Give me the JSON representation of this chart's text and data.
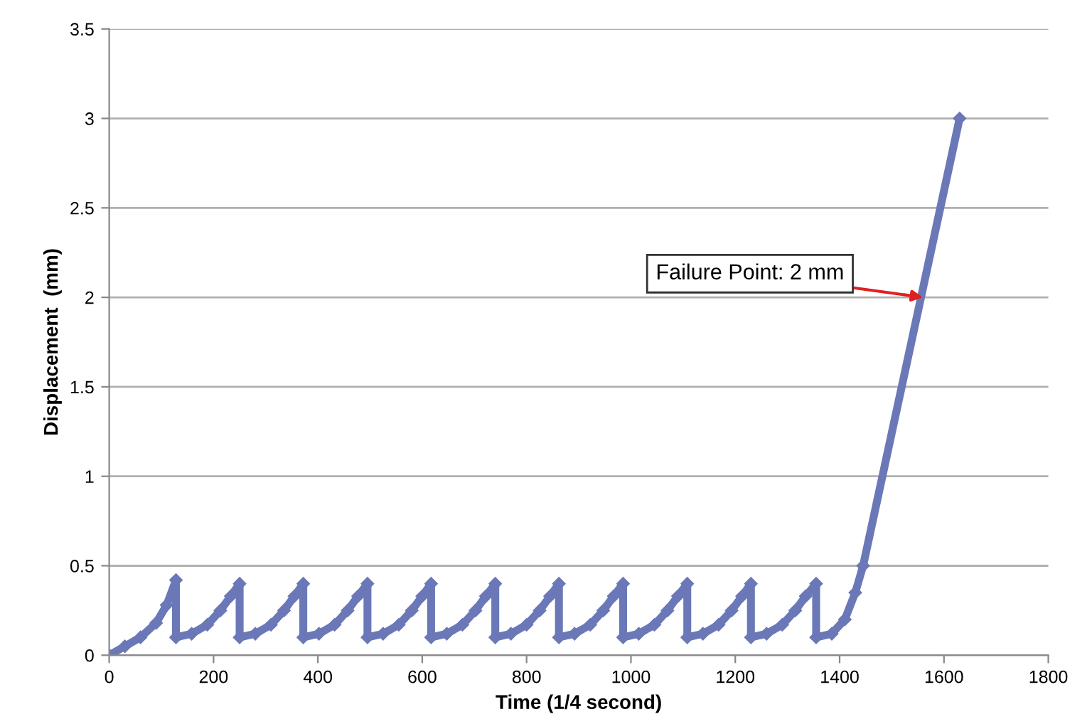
{
  "chart_data": {
    "type": "line",
    "xlabel": "Time (1/4 second)",
    "ylabel": "Displacement  (mm)",
    "series": [
      {
        "color": "#6b78b8",
        "x": [
          0,
          30,
          60,
          90,
          110,
          128,
          128,
          158,
          188,
          213,
          233,
          250,
          250,
          280,
          310,
          335,
          355,
          372,
          372,
          402,
          432,
          457,
          477,
          495,
          495,
          525,
          555,
          580,
          600,
          617,
          617,
          647,
          677,
          702,
          722,
          740,
          740,
          770,
          800,
          825,
          845,
          862,
          862,
          892,
          922,
          947,
          967,
          985,
          985,
          1015,
          1045,
          1070,
          1090,
          1108,
          1108,
          1138,
          1168,
          1193,
          1213,
          1230,
          1230,
          1260,
          1290,
          1315,
          1335,
          1355,
          1355,
          1385,
          1410,
          1430,
          1445,
          1630
        ],
        "values": [
          0,
          0.05,
          0.1,
          0.18,
          0.28,
          0.42,
          0.1,
          0.12,
          0.17,
          0.25,
          0.33,
          0.4,
          0.1,
          0.12,
          0.17,
          0.25,
          0.33,
          0.4,
          0.1,
          0.12,
          0.17,
          0.25,
          0.33,
          0.4,
          0.1,
          0.12,
          0.17,
          0.25,
          0.33,
          0.4,
          0.1,
          0.12,
          0.17,
          0.25,
          0.33,
          0.4,
          0.1,
          0.12,
          0.17,
          0.25,
          0.33,
          0.4,
          0.1,
          0.12,
          0.17,
          0.25,
          0.33,
          0.4,
          0.1,
          0.12,
          0.17,
          0.25,
          0.33,
          0.4,
          0.1,
          0.12,
          0.17,
          0.25,
          0.33,
          0.4,
          0.1,
          0.12,
          0.17,
          0.25,
          0.33,
          0.4,
          0.1,
          0.12,
          0.2,
          0.35,
          0.5,
          3.0
        ]
      }
    ],
    "xlim": [
      0,
      1800
    ],
    "xticks": [
      0,
      200,
      400,
      600,
      800,
      1000,
      1200,
      1400,
      1600,
      1800
    ],
    "ylim": [
      0,
      3.5
    ],
    "yticks": [
      0,
      0.5,
      1,
      1.5,
      2,
      2.5,
      3,
      3.5
    ],
    "grid": "y",
    "marker": "diamond",
    "line_style": "solid",
    "annotations": [
      {
        "text": "Failure Point: 2 mm",
        "x": 1560,
        "y": 2
      }
    ]
  }
}
